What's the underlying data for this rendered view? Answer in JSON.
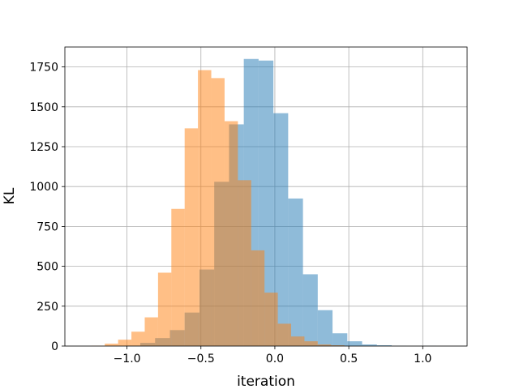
{
  "chart_data": {
    "type": "bar",
    "subtype": "histogram",
    "xlabel": "iteration",
    "ylabel": "KL",
    "xlim": [
      -1.42,
      1.3
    ],
    "ylim": [
      0,
      1875
    ],
    "grid": true,
    "x_ticks": [
      {
        "value": -1.0,
        "label": "−1.0"
      },
      {
        "value": -0.5,
        "label": "−0.5"
      },
      {
        "value": 0.0,
        "label": "0.0"
      },
      {
        "value": 0.5,
        "label": "0.5"
      },
      {
        "value": 1.0,
        "label": "1.0"
      }
    ],
    "y_ticks": [
      {
        "value": 0,
        "label": "0"
      },
      {
        "value": 250,
        "label": "250"
      },
      {
        "value": 500,
        "label": "500"
      },
      {
        "value": 750,
        "label": "750"
      },
      {
        "value": 1000,
        "label": "1000"
      },
      {
        "value": 1250,
        "label": "1250"
      },
      {
        "value": 1500,
        "label": "1500"
      },
      {
        "value": 1750,
        "label": "1750"
      }
    ],
    "series": [
      {
        "color": "#1f77b4",
        "opacity": 0.5,
        "bin_start": -1.01,
        "bin_width": 0.1,
        "counts": [
          3,
          20,
          50,
          100,
          210,
          480,
          1030,
          1390,
          1800,
          1790,
          1460,
          925,
          450,
          225,
          80,
          30,
          10,
          5,
          1,
          0,
          1
        ]
      },
      {
        "color": "#ff7f0e",
        "opacity": 0.5,
        "bin_start": -1.24,
        "bin_width": 0.09,
        "counts": [
          2,
          15,
          40,
          90,
          180,
          460,
          860,
          1365,
          1730,
          1680,
          1410,
          1040,
          600,
          335,
          140,
          60,
          30,
          10,
          5
        ]
      }
    ]
  }
}
